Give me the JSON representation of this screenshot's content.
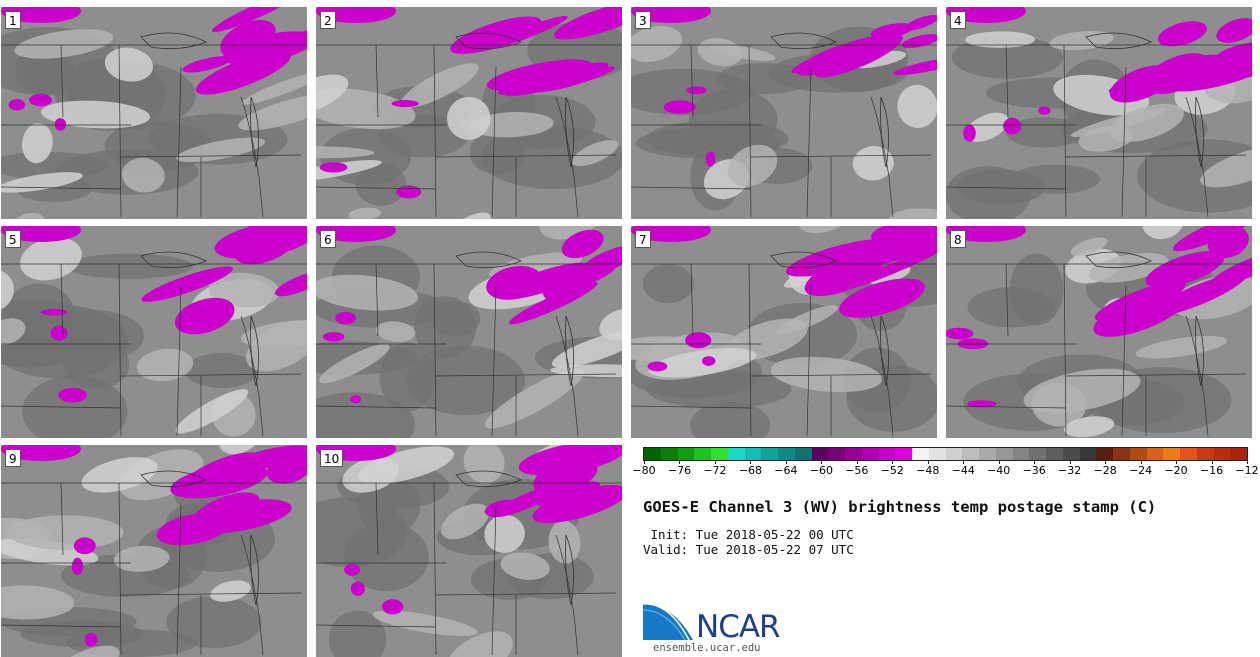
{
  "panels": [
    {
      "label": "1"
    },
    {
      "label": "2"
    },
    {
      "label": "3"
    },
    {
      "label": "4"
    },
    {
      "label": "5"
    },
    {
      "label": "6"
    },
    {
      "label": "7"
    },
    {
      "label": "8"
    },
    {
      "label": "9"
    },
    {
      "label": "10"
    }
  ],
  "colorbar": {
    "ticks": [
      "−80",
      "−76",
      "−72",
      "−68",
      "−64",
      "−60",
      "−56",
      "−52",
      "−48",
      "−44",
      "−40",
      "−36",
      "−32",
      "−28",
      "−24",
      "−20",
      "−16",
      "−12"
    ],
    "colors": [
      "#006400",
      "#0a7f0a",
      "#119f11",
      "#1fc21f",
      "#2fe02f",
      "#1ad9c8",
      "#16bcb4",
      "#12a29c",
      "#0f8a86",
      "#0b7470",
      "#5e005e",
      "#7a007a",
      "#960096",
      "#b000b0",
      "#c800c8",
      "#de00de",
      "#f4f4f4",
      "#e2e2e2",
      "#d0d0d0",
      "#bdbdbd",
      "#aaaaaa",
      "#979797",
      "#848484",
      "#717171",
      "#5e5e5e",
      "#4b4b4b",
      "#383838",
      "#5a1e0e",
      "#8a3412",
      "#b24a14",
      "#d8621a",
      "#ee7a1e",
      "#e2541a",
      "#c83a14",
      "#b52e10",
      "#a8240c"
    ]
  },
  "title": "GOES-E Channel 3 (WV) brightness temp postage stamp (C)",
  "init_line": " Init: Tue 2018-05-22 00 UTC",
  "valid_line": "Valid: Tue 2018-05-22 07 UTC",
  "logo": {
    "text": "NCAR",
    "site": "ensemble.ucar.edu",
    "brand_color": "#1d3f8e"
  },
  "field_colors": {
    "base": "#8e8e8e",
    "dark": "#727272",
    "light": "#b4b4b4",
    "lighter": "#d2d2d2",
    "magenta": "#cc00cc",
    "boundary": "#333333"
  }
}
